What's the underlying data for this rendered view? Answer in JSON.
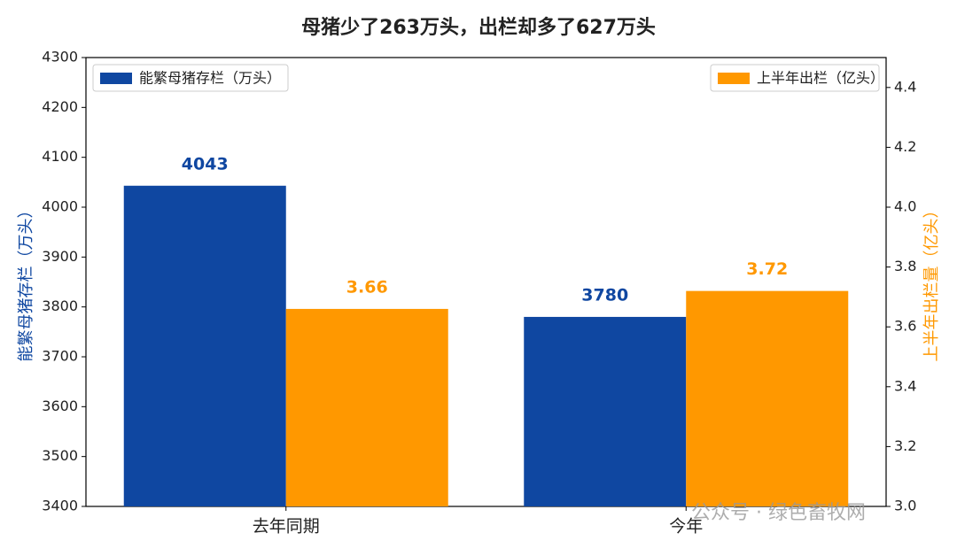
{
  "chart_data": {
    "type": "bar",
    "title": "母猪少了263万头，出栏却多了627万头",
    "categories": [
      "去年同期",
      "今年"
    ],
    "series": [
      {
        "name": "能繁母猪存栏（万头）",
        "color": "#0f47a1",
        "values": [
          4043,
          3780
        ],
        "legend": "upper left"
      },
      {
        "name": "上半年出栏（亿头）",
        "color": "#ff9800",
        "values": [
          3.66,
          3.72
        ],
        "axis": "y2",
        "legend": "upper right"
      }
    ],
    "ylabel": "能繁母猪存栏（万头）",
    "y2label": "上半年出栏量（亿头）",
    "ylim": [
      3400,
      4300
    ],
    "yticks": [
      3400,
      3500,
      3600,
      3700,
      3800,
      3900,
      4000,
      4100,
      4200,
      4300
    ],
    "y2lim": [
      3.0,
      4.5
    ],
    "y2ticks": [
      {
        "value": 3,
        "label": "3.0"
      },
      3.2,
      3.4,
      3.6,
      3.8,
      {
        "value": 4,
        "label": "4.0"
      },
      4.2,
      4.4
    ],
    "grid": false,
    "watermark": "公众号 · 绿色畜牧网"
  }
}
